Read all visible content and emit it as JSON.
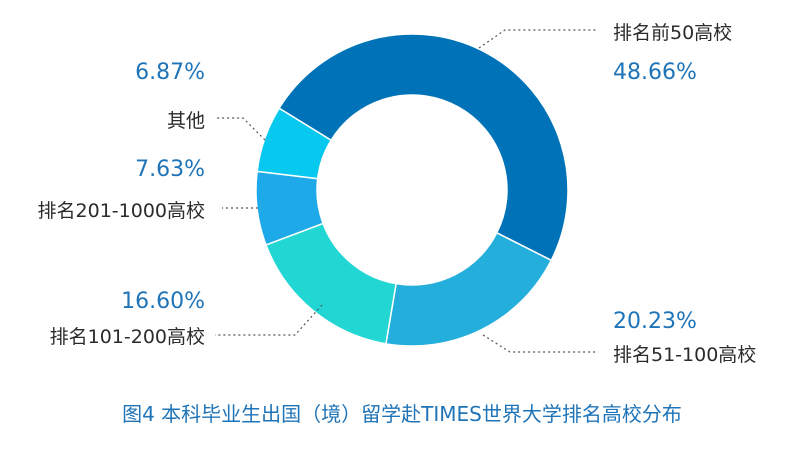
{
  "chart_data": {
    "type": "pie",
    "style": "donut",
    "caption": "图4  本科毕业生出国（境）留学赴TIMES世界大学排名高校分布",
    "slices": [
      {
        "label": "排名前50高校",
        "value": 48.66,
        "value_text": "48.66%",
        "color": "#0073b8"
      },
      {
        "label": "排名51-100高校",
        "value": 20.23,
        "value_text": "20.23%",
        "color": "#23aedc"
      },
      {
        "label": "排名101-200高校",
        "value": 16.6,
        "value_text": "16.60%",
        "color": "#22d6d3"
      },
      {
        "label": "排名201-1000高校",
        "value": 7.63,
        "value_text": "7.63%",
        "color": "#1eaae8"
      },
      {
        "label": "其他",
        "value": 6.87,
        "value_text": "6.87%",
        "color": "#07c8ee"
      }
    ]
  }
}
